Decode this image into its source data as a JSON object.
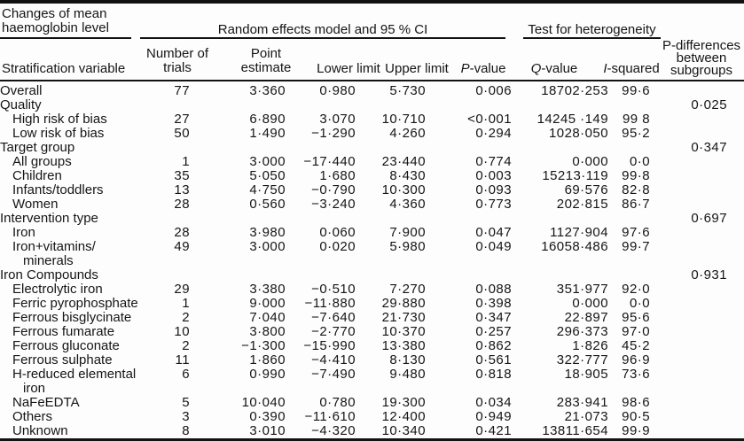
{
  "header": {
    "stub_title_line1": "Changes of mean",
    "stub_title_line2": "haemoglobin level",
    "group_random_effects": "Random effects model and 95 % CI",
    "group_heterogeneity": "Test for heterogeneity",
    "pdiff_line1": "P-differences",
    "pdiff_line2": "between",
    "pdiff_line3": "subgroups",
    "columns": {
      "stratification": "Stratification variable",
      "trials_line1": "Number of",
      "trials_line2": "trials",
      "point_line1": "Point",
      "point_line2": "estimate",
      "lower": "Lower limit",
      "upper": "Upper limit",
      "p_italic": "P",
      "p_rest": "-value",
      "q_italic": "Q",
      "q_rest": "-value",
      "i_italic": "I",
      "i_rest": "-squared"
    }
  },
  "table": {
    "rows": [
      {
        "label": "Overall",
        "indent": 0,
        "trials": "77",
        "point": "3·360",
        "lower": "0·980",
        "upper": "5·730",
        "p": "0·006",
        "q": "18702·253",
        "i2": "99·6",
        "pdiff": ""
      },
      {
        "label": "Quality",
        "indent": 0,
        "trials": "",
        "point": "",
        "lower": "",
        "upper": "",
        "p": "",
        "q": "",
        "i2": "",
        "pdiff": "0·025"
      },
      {
        "label": "High risk of bias",
        "indent": 1,
        "trials": "27",
        "point": "6·890",
        "lower": "3·070",
        "upper": "10·710",
        "p": "<0·001",
        "q": "14245 ·149",
        "i2": "99 8",
        "pdiff": ""
      },
      {
        "label": "Low risk of bias",
        "indent": 1,
        "trials": "50",
        "point": "1·490",
        "lower": "−1·290",
        "upper": "4·260",
        "p": "0·294",
        "q": "1028·050",
        "i2": "95·2",
        "pdiff": ""
      },
      {
        "label": "Target group",
        "indent": 0,
        "trials": "",
        "point": "",
        "lower": "",
        "upper": "",
        "p": "",
        "q": "",
        "i2": "",
        "pdiff": "0·347"
      },
      {
        "label": "All groups",
        "indent": 1,
        "trials": "1",
        "point": "3·000",
        "lower": "−17·440",
        "upper": "23·440",
        "p": "0·774",
        "q": "0·000",
        "i2": "0·0",
        "pdiff": ""
      },
      {
        "label": "Children",
        "indent": 1,
        "trials": "35",
        "point": "5·050",
        "lower": "1·680",
        "upper": "8·430",
        "p": "0·003",
        "q": "15213·119",
        "i2": "99·8",
        "pdiff": ""
      },
      {
        "label": "Infants/toddlers",
        "indent": 1,
        "trials": "13",
        "point": "4·750",
        "lower": "−0·790",
        "upper": "10·300",
        "p": "0·093",
        "q": "69·576",
        "i2": "82·8",
        "pdiff": ""
      },
      {
        "label": "Women",
        "indent": 1,
        "trials": "28",
        "point": "0·560",
        "lower": "−3·240",
        "upper": "4·360",
        "p": "0·773",
        "q": "202·815",
        "i2": "86·7",
        "pdiff": ""
      },
      {
        "label": "Intervention type",
        "indent": 0,
        "trials": "",
        "point": "",
        "lower": "",
        "upper": "",
        "p": "",
        "q": "",
        "i2": "",
        "pdiff": "0·697"
      },
      {
        "label": "Iron",
        "indent": 1,
        "trials": "28",
        "point": "3·980",
        "lower": "0·060",
        "upper": "7·900",
        "p": "0·047",
        "q": "1127·904",
        "i2": "97·6",
        "pdiff": ""
      },
      {
        "label": "Iron+vitamins/",
        "label2": "minerals",
        "indent": 1,
        "trials": "49",
        "point": "3·000",
        "lower": "0·020",
        "upper": "5·980",
        "p": "0·049",
        "q": "16058·486",
        "i2": "99·7",
        "pdiff": ""
      },
      {
        "label": "Iron Compounds",
        "indent": 0,
        "trials": "",
        "point": "",
        "lower": "",
        "upper": "",
        "p": "",
        "q": "",
        "i2": "",
        "pdiff": "0·931"
      },
      {
        "label": "Electrolytic iron",
        "indent": 1,
        "trials": "29",
        "point": "3·380",
        "lower": "−0·510",
        "upper": "7·270",
        "p": "0·088",
        "q": "351·977",
        "i2": "92·0",
        "pdiff": ""
      },
      {
        "label": "Ferric pyrophosphate",
        "indent": 1,
        "trials": "1",
        "point": "9·000",
        "lower": "−11·880",
        "upper": "29·880",
        "p": "0·398",
        "q": "0·000",
        "i2": "0·0",
        "pdiff": ""
      },
      {
        "label": "Ferrous bisglycinate",
        "indent": 1,
        "trials": "2",
        "point": "7·040",
        "lower": "−7·640",
        "upper": "21·730",
        "p": "0·347",
        "q": "22·897",
        "i2": "95·6",
        "pdiff": ""
      },
      {
        "label": "Ferrous fumarate",
        "indent": 1,
        "trials": "10",
        "point": "3·800",
        "lower": "−2·770",
        "upper": "10·370",
        "p": "0·257",
        "q": "296·373",
        "i2": "97·0",
        "pdiff": ""
      },
      {
        "label": "Ferrous gluconate",
        "indent": 1,
        "trials": "2",
        "point": "−1·300",
        "lower": "−15·990",
        "upper": "13·380",
        "p": "0·862",
        "q": "1·826",
        "i2": "45·2",
        "pdiff": ""
      },
      {
        "label": "Ferrous sulphate",
        "indent": 1,
        "trials": "11",
        "point": "1·860",
        "lower": "−4·410",
        "upper": "8·130",
        "p": "0·561",
        "q": "322·777",
        "i2": "96·9",
        "pdiff": ""
      },
      {
        "label": "H-reduced elemental",
        "label2": "iron",
        "indent": 1,
        "trials": "6",
        "point": "0·990",
        "lower": "−7·490",
        "upper": "9·480",
        "p": "0·818",
        "q": "18·905",
        "i2": "73·6",
        "pdiff": ""
      },
      {
        "label": "NaFeEDTA",
        "indent": 1,
        "trials": "5",
        "point": "10·040",
        "lower": "0·780",
        "upper": "19·300",
        "p": "0·034",
        "q": "283·941",
        "i2": "98·6",
        "pdiff": ""
      },
      {
        "label": "Others",
        "indent": 1,
        "trials": "3",
        "point": "0·390",
        "lower": "−11·610",
        "upper": "12·400",
        "p": "0·949",
        "q": "21·073",
        "i2": "90·5",
        "pdiff": ""
      },
      {
        "label": "Unknown",
        "indent": 1,
        "trials": "8",
        "point": "3·010",
        "lower": "−4·320",
        "upper": "10·340",
        "p": "0·421",
        "q": "13811·654",
        "i2": "99·9",
        "pdiff": ""
      }
    ]
  }
}
